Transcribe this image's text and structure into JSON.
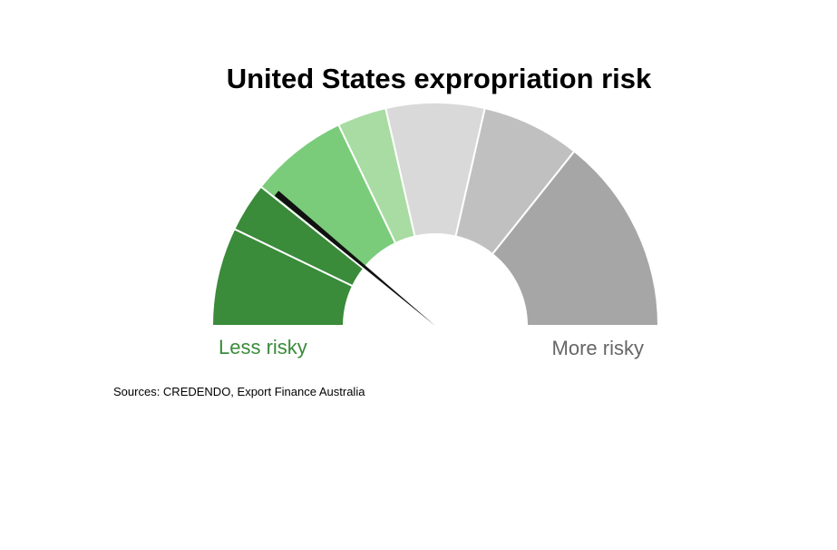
{
  "chart_data": {
    "type": "gauge",
    "title": "United States expropriation risk",
    "value": 1.55,
    "min": 0,
    "max": 7,
    "bands": [
      {
        "from": 0,
        "to": 1,
        "color": "#3a8b3a"
      },
      {
        "from": 1,
        "to": 1.5,
        "color": "#3a8b3a"
      },
      {
        "from": 1.5,
        "to": 2.5,
        "color": "#7acc7a"
      },
      {
        "from": 2.5,
        "to": 3,
        "color": "#a8dca2"
      },
      {
        "from": 3,
        "to": 4,
        "color": "#d9d9d9"
      },
      {
        "from": 4,
        "to": 5,
        "color": "#c0c0c0"
      },
      {
        "from": 5,
        "to": 7,
        "color": "#a6a6a6"
      }
    ],
    "low_label": "Less risky",
    "high_label": "More risky",
    "needle_color": "#111111"
  },
  "colors": {
    "low_label": "#3a8b3a",
    "high_label": "#666666"
  },
  "source_text": "Sources: CREDENDO, Export Finance Australia"
}
